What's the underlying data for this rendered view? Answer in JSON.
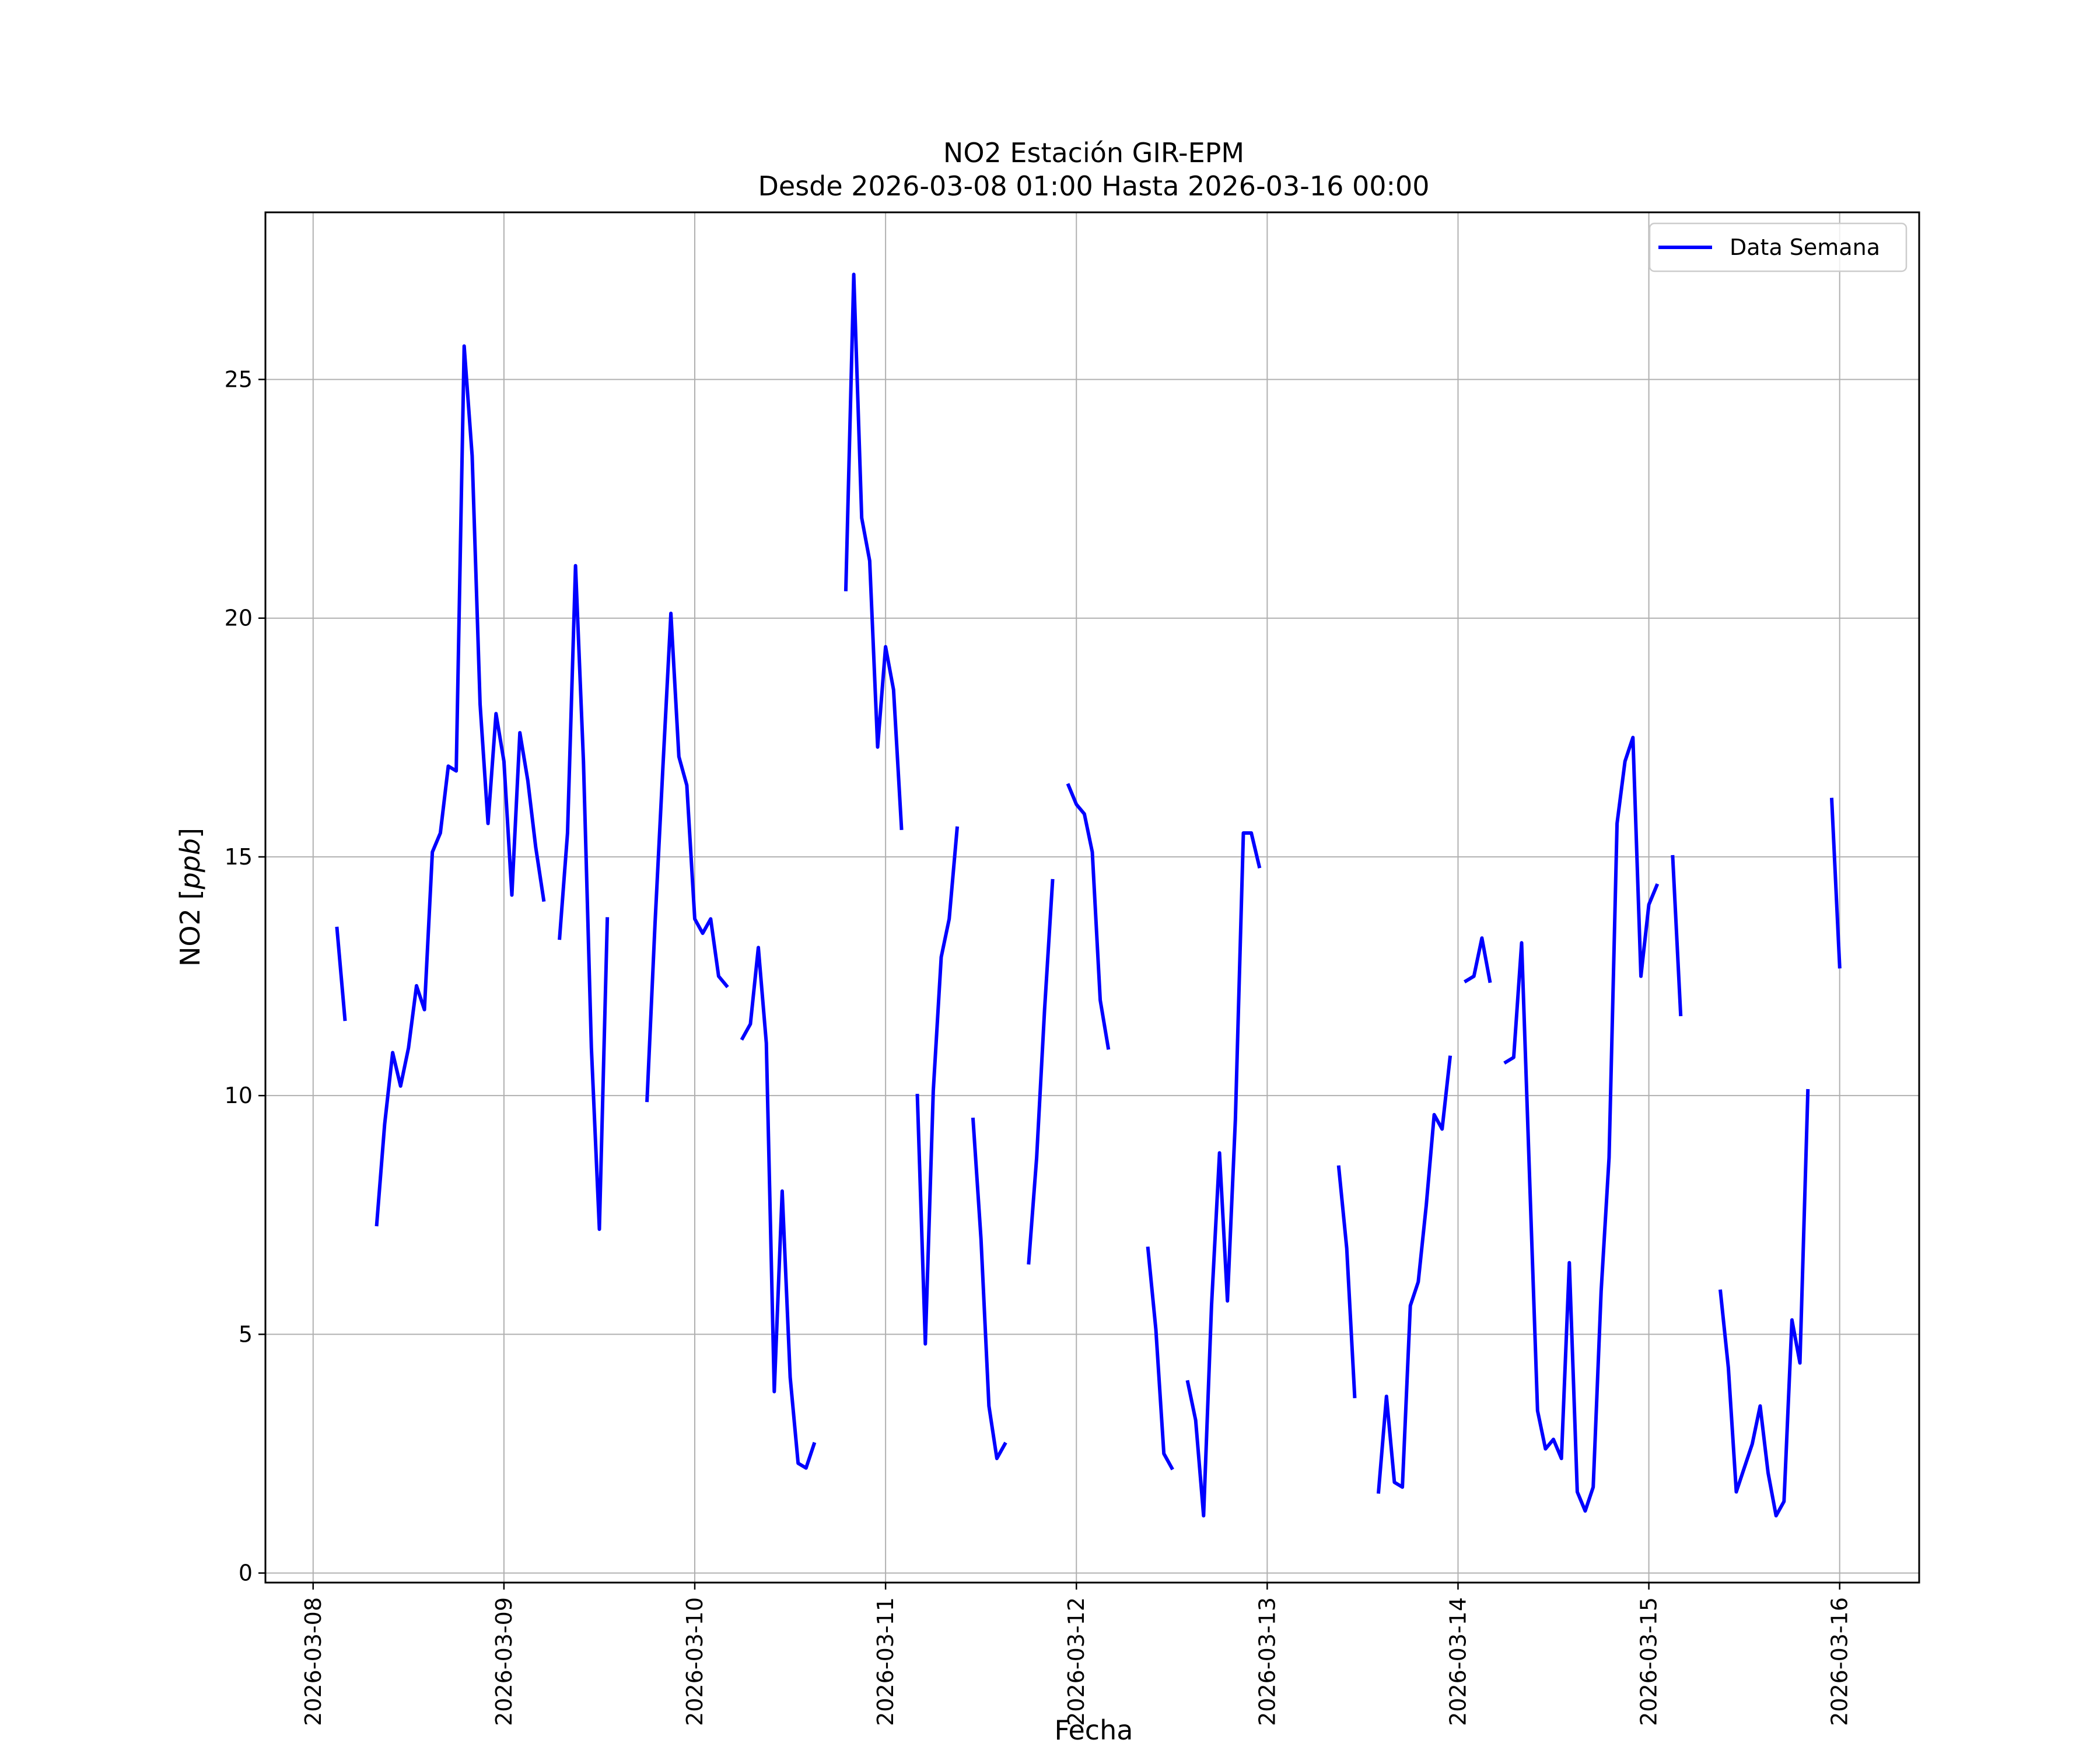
{
  "chart_data": {
    "type": "line",
    "title": "NO2 Estación GIR-EPM",
    "subtitle": "Desde 2026-03-08 01:00 Hasta 2026-03-16 00:00",
    "xlabel": "Fecha",
    "ylabel": "NO2 [ppb]",
    "ylabel_main": "NO2 ",
    "ylabel_unit": "ppb",
    "xlim": [
      "2026-03-07 18:00",
      "2026-03-16 10:00"
    ],
    "ylim": [
      -0.2,
      28.5
    ],
    "x_ticks": [
      "2026-03-08",
      "2026-03-09",
      "2026-03-10",
      "2026-03-11",
      "2026-03-12",
      "2026-03-13",
      "2026-03-14",
      "2026-03-15",
      "2026-03-16"
    ],
    "y_ticks": [
      0,
      5,
      10,
      15,
      20,
      25
    ],
    "grid": true,
    "legend_position": "upper right",
    "series": [
      {
        "name": "Data Semana",
        "color": "#0000ff",
        "segments": [
          [
            [
              "2026-03-08 03:00",
              13.5
            ],
            [
              "2026-03-08 04:00",
              11.6
            ]
          ],
          [
            [
              "2026-03-08 08:00",
              7.3
            ],
            [
              "2026-03-08 09:00",
              9.4
            ],
            [
              "2026-03-08 10:00",
              10.9
            ],
            [
              "2026-03-08 11:00",
              10.2
            ],
            [
              "2026-03-08 12:00",
              11.0
            ],
            [
              "2026-03-08 13:00",
              12.3
            ],
            [
              "2026-03-08 14:00",
              11.8
            ],
            [
              "2026-03-08 15:00",
              15.1
            ],
            [
              "2026-03-08 16:00",
              15.5
            ],
            [
              "2026-03-08 17:00",
              16.9
            ],
            [
              "2026-03-08 18:00",
              16.8
            ],
            [
              "2026-03-08 19:00",
              25.7
            ],
            [
              "2026-03-08 20:00",
              23.4
            ],
            [
              "2026-03-08 21:00",
              18.2
            ],
            [
              "2026-03-08 22:00",
              15.7
            ],
            [
              "2026-03-08 23:00",
              18.0
            ],
            [
              "2026-03-09 00:00",
              17.0
            ],
            [
              "2026-03-09 01:00",
              14.2
            ],
            [
              "2026-03-09 02:00",
              17.6
            ],
            [
              "2026-03-09 03:00",
              16.6
            ],
            [
              "2026-03-09 04:00",
              15.2
            ],
            [
              "2026-03-09 05:00",
              14.1
            ]
          ],
          [
            [
              "2026-03-09 07:00",
              13.3
            ],
            [
              "2026-03-09 08:00",
              15.5
            ],
            [
              "2026-03-09 09:00",
              21.1
            ],
            [
              "2026-03-09 10:00",
              17.0
            ],
            [
              "2026-03-09 11:00",
              11.0
            ],
            [
              "2026-03-09 12:00",
              7.2
            ],
            [
              "2026-03-09 13:00",
              13.7
            ]
          ],
          [
            [
              "2026-03-09 18:00",
              9.9
            ],
            [
              "2026-03-09 19:00",
              13.6
            ],
            [
              "2026-03-09 20:00",
              16.9
            ],
            [
              "2026-03-09 21:00",
              20.1
            ],
            [
              "2026-03-09 22:00",
              17.1
            ],
            [
              "2026-03-09 23:00",
              16.5
            ],
            [
              "2026-03-10 00:00",
              13.7
            ],
            [
              "2026-03-10 01:00",
              13.4
            ],
            [
              "2026-03-10 02:00",
              13.7
            ],
            [
              "2026-03-10 03:00",
              12.5
            ],
            [
              "2026-03-10 04:00",
              12.3
            ]
          ],
          [
            [
              "2026-03-10 06:00",
              11.2
            ],
            [
              "2026-03-10 07:00",
              11.5
            ],
            [
              "2026-03-10 08:00",
              13.1
            ],
            [
              "2026-03-10 09:00",
              11.1
            ],
            [
              "2026-03-10 10:00",
              3.8
            ],
            [
              "2026-03-10 11:00",
              8.0
            ],
            [
              "2026-03-10 12:00",
              4.1
            ],
            [
              "2026-03-10 13:00",
              2.3
            ],
            [
              "2026-03-10 14:00",
              2.2
            ],
            [
              "2026-03-10 15:00",
              2.7
            ]
          ],
          [
            [
              "2026-03-10 19:00",
              20.6
            ],
            [
              "2026-03-10 20:00",
              27.2
            ],
            [
              "2026-03-10 21:00",
              22.1
            ],
            [
              "2026-03-10 22:00",
              21.2
            ],
            [
              "2026-03-10 23:00",
              17.3
            ],
            [
              "2026-03-11 00:00",
              19.4
            ],
            [
              "2026-03-11 01:00",
              18.5
            ],
            [
              "2026-03-11 02:00",
              15.6
            ]
          ],
          [
            [
              "2026-03-11 04:00",
              10.0
            ],
            [
              "2026-03-11 05:00",
              4.8
            ],
            [
              "2026-03-11 06:00",
              10.1
            ],
            [
              "2026-03-11 07:00",
              12.9
            ],
            [
              "2026-03-11 08:00",
              13.7
            ],
            [
              "2026-03-11 09:00",
              15.6
            ]
          ],
          [
            [
              "2026-03-11 11:00",
              9.5
            ],
            [
              "2026-03-11 12:00",
              7.0
            ],
            [
              "2026-03-11 13:00",
              3.5
            ],
            [
              "2026-03-11 14:00",
              2.4
            ],
            [
              "2026-03-11 15:00",
              2.7
            ]
          ],
          [
            [
              "2026-03-11 18:00",
              6.5
            ],
            [
              "2026-03-11 19:00",
              8.7
            ],
            [
              "2026-03-11 20:00",
              11.8
            ],
            [
              "2026-03-11 21:00",
              14.5
            ]
          ],
          [
            [
              "2026-03-11 23:00",
              16.5
            ],
            [
              "2026-03-12 00:00",
              16.1
            ],
            [
              "2026-03-12 01:00",
              15.9
            ],
            [
              "2026-03-12 02:00",
              15.1
            ],
            [
              "2026-03-12 03:00",
              12.0
            ],
            [
              "2026-03-12 04:00",
              11.0
            ]
          ],
          [
            [
              "2026-03-12 09:00",
              6.8
            ],
            [
              "2026-03-12 10:00",
              5.1
            ],
            [
              "2026-03-12 11:00",
              2.5
            ],
            [
              "2026-03-12 12:00",
              2.2
            ]
          ],
          [
            [
              "2026-03-12 14:00",
              4.0
            ],
            [
              "2026-03-12 15:00",
              3.2
            ],
            [
              "2026-03-12 16:00",
              1.2
            ],
            [
              "2026-03-12 17:00",
              5.6
            ],
            [
              "2026-03-12 18:00",
              8.8
            ],
            [
              "2026-03-12 19:00",
              5.7
            ],
            [
              "2026-03-12 20:00",
              9.5
            ],
            [
              "2026-03-12 21:00",
              15.5
            ],
            [
              "2026-03-12 22:00",
              15.5
            ],
            [
              "2026-03-12 23:00",
              14.8
            ]
          ],
          [
            [
              "2026-03-13 09:00",
              8.5
            ],
            [
              "2026-03-13 10:00",
              6.8
            ],
            [
              "2026-03-13 11:00",
              3.7
            ]
          ],
          [
            [
              "2026-03-13 14:00",
              1.7
            ],
            [
              "2026-03-13 15:00",
              3.7
            ],
            [
              "2026-03-13 16:00",
              1.9
            ],
            [
              "2026-03-13 17:00",
              1.8
            ],
            [
              "2026-03-13 18:00",
              5.6
            ],
            [
              "2026-03-13 19:00",
              6.1
            ],
            [
              "2026-03-13 20:00",
              7.7
            ],
            [
              "2026-03-13 21:00",
              9.6
            ],
            [
              "2026-03-13 22:00",
              9.3
            ],
            [
              "2026-03-13 23:00",
              10.8
            ]
          ],
          [
            [
              "2026-03-14 01:00",
              12.4
            ],
            [
              "2026-03-14 02:00",
              12.5
            ],
            [
              "2026-03-14 03:00",
              13.3
            ],
            [
              "2026-03-14 04:00",
              12.4
            ]
          ],
          [
            [
              "2026-03-14 06:00",
              10.7
            ],
            [
              "2026-03-14 07:00",
              10.8
            ],
            [
              "2026-03-14 08:00",
              13.2
            ],
            [
              "2026-03-14 09:00",
              8.3
            ],
            [
              "2026-03-14 10:00",
              3.4
            ],
            [
              "2026-03-14 11:00",
              2.6
            ],
            [
              "2026-03-14 12:00",
              2.8
            ],
            [
              "2026-03-14 13:00",
              2.4
            ],
            [
              "2026-03-14 14:00",
              6.5
            ],
            [
              "2026-03-14 15:00",
              1.7
            ],
            [
              "2026-03-14 16:00",
              1.3
            ],
            [
              "2026-03-14 17:00",
              1.8
            ],
            [
              "2026-03-14 18:00",
              5.9
            ],
            [
              "2026-03-14 19:00",
              8.7
            ],
            [
              "2026-03-14 20:00",
              15.7
            ],
            [
              "2026-03-14 21:00",
              17.0
            ],
            [
              "2026-03-14 22:00",
              17.5
            ],
            [
              "2026-03-14 23:00",
              12.5
            ],
            [
              "2026-03-15 00:00",
              14.0
            ],
            [
              "2026-03-15 01:00",
              14.4
            ]
          ],
          [
            [
              "2026-03-15 03:00",
              15.0
            ],
            [
              "2026-03-15 04:00",
              11.7
            ]
          ],
          [
            [
              "2026-03-15 09:00",
              5.9
            ],
            [
              "2026-03-15 10:00",
              4.3
            ],
            [
              "2026-03-15 11:00",
              1.7
            ],
            [
              "2026-03-15 12:00",
              2.2
            ],
            [
              "2026-03-15 13:00",
              2.7
            ],
            [
              "2026-03-15 14:00",
              3.5
            ],
            [
              "2026-03-15 15:00",
              2.1
            ],
            [
              "2026-03-15 16:00",
              1.2
            ],
            [
              "2026-03-15 17:00",
              1.5
            ],
            [
              "2026-03-15 18:00",
              5.3
            ],
            [
              "2026-03-15 19:00",
              4.4
            ],
            [
              "2026-03-15 20:00",
              10.1
            ]
          ],
          [
            [
              "2026-03-15 23:00",
              16.2
            ],
            [
              "2026-03-16 00:00",
              12.7
            ]
          ]
        ]
      }
    ]
  }
}
